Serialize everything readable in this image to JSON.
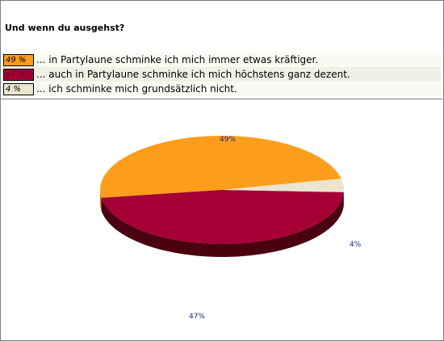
{
  "question": "Und wenn du ausgehst?",
  "colors": {
    "orange": "#fd9d1c",
    "orange_side": "#b8730f",
    "crimson": "#a40036",
    "crimson_side": "#4a0010",
    "beige": "#ebe5cf",
    "beige_side": "#a69f86",
    "label": "#1c2a8c"
  },
  "chart_data": {
    "type": "pie",
    "title": "Und wenn du ausgehst?",
    "labels": [
      "... in Partylaune schminke ich mich immer etwas kräftiger.",
      "... auch in Partylaune schminke ich mich höchstens ganz dezent.",
      "... ich schminke mich grundsätzlich nicht."
    ],
    "values": [
      49,
      47,
      4
    ],
    "legend_percent": [
      "49 %",
      "47 %",
      "4 %"
    ],
    "slice_labels": [
      "49%",
      "47%",
      "4%"
    ],
    "colors": [
      "#fd9d1c",
      "#a40036",
      "#ebe5cf"
    ]
  }
}
